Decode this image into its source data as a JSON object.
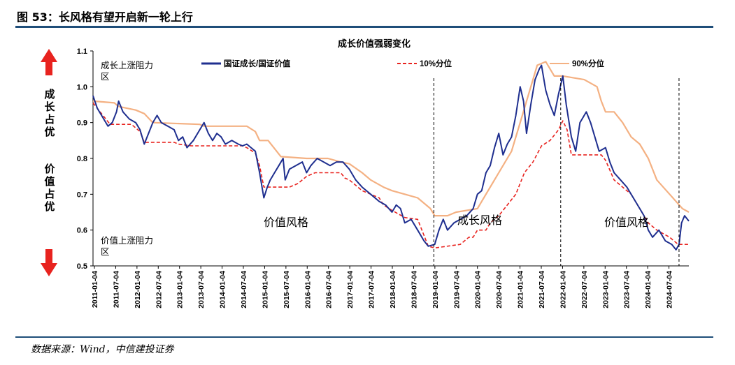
{
  "figure_title": "图 53：长风格有望开启新一轮上行",
  "source": "数据来源：Wind，中信建投证券",
  "chart_data": {
    "type": "line",
    "title": "成长价值强弱变化",
    "ylim": [
      0.5,
      1.1
    ],
    "yticks": [
      "0.5",
      "0.6",
      "0.7",
      "0.8",
      "0.9",
      "1.0",
      "1.1"
    ],
    "xticks": [
      "2011-01-04",
      "2011-07-04",
      "2012-01-04",
      "2012-07-04",
      "2013-01-04",
      "2013-07-04",
      "2014-01-04",
      "2014-07-04",
      "2015-01-04",
      "2015-07-04",
      "2016-01-04",
      "2016-07-04",
      "2017-01-04",
      "2017-07-04",
      "2018-01-04",
      "2018-07-04",
      "2019-01-04",
      "2019-07-04",
      "2020-01-04",
      "2020-07-04",
      "2021-01-04",
      "2021-07-04",
      "2022-01-04",
      "2022-07-04",
      "2023-01-04",
      "2023-07-04",
      "2024-01-04",
      "2024-07-04"
    ],
    "x_range": [
      2011.0,
      2024.95
    ],
    "series": [
      {
        "name": "国证成长/国证价值",
        "color": "#1f2f8f",
        "style": "solid",
        "points": [
          [
            2011.0,
            0.975
          ],
          [
            2011.1,
            0.94
          ],
          [
            2011.25,
            0.91
          ],
          [
            2011.35,
            0.89
          ],
          [
            2011.45,
            0.9
          ],
          [
            2011.55,
            0.93
          ],
          [
            2011.6,
            0.96
          ],
          [
            2011.7,
            0.93
          ],
          [
            2011.85,
            0.91
          ],
          [
            2012.0,
            0.9
          ],
          [
            2012.1,
            0.88
          ],
          [
            2012.2,
            0.84
          ],
          [
            2012.3,
            0.87
          ],
          [
            2012.4,
            0.9
          ],
          [
            2012.5,
            0.92
          ],
          [
            2012.6,
            0.9
          ],
          [
            2012.75,
            0.89
          ],
          [
            2012.9,
            0.88
          ],
          [
            2013.0,
            0.85
          ],
          [
            2013.1,
            0.86
          ],
          [
            2013.2,
            0.83
          ],
          [
            2013.35,
            0.85
          ],
          [
            2013.5,
            0.88
          ],
          [
            2013.6,
            0.9
          ],
          [
            2013.7,
            0.87
          ],
          [
            2013.8,
            0.85
          ],
          [
            2013.9,
            0.87
          ],
          [
            2014.0,
            0.86
          ],
          [
            2014.1,
            0.84
          ],
          [
            2014.25,
            0.85
          ],
          [
            2014.4,
            0.84
          ],
          [
            2014.5,
            0.835
          ],
          [
            2014.6,
            0.84
          ],
          [
            2014.7,
            0.83
          ],
          [
            2014.8,
            0.82
          ],
          [
            2014.9,
            0.76
          ],
          [
            2015.0,
            0.69
          ],
          [
            2015.08,
            0.72
          ],
          [
            2015.15,
            0.74
          ],
          [
            2015.25,
            0.76
          ],
          [
            2015.35,
            0.78
          ],
          [
            2015.45,
            0.8
          ],
          [
            2015.5,
            0.74
          ],
          [
            2015.6,
            0.77
          ],
          [
            2015.75,
            0.78
          ],
          [
            2015.9,
            0.79
          ],
          [
            2016.0,
            0.76
          ],
          [
            2016.1,
            0.78
          ],
          [
            2016.25,
            0.8
          ],
          [
            2016.4,
            0.79
          ],
          [
            2016.55,
            0.78
          ],
          [
            2016.7,
            0.79
          ],
          [
            2016.85,
            0.79
          ],
          [
            2017.0,
            0.77
          ],
          [
            2017.15,
            0.74
          ],
          [
            2017.3,
            0.72
          ],
          [
            2017.5,
            0.7
          ],
          [
            2017.7,
            0.68
          ],
          [
            2017.85,
            0.67
          ],
          [
            2018.0,
            0.65
          ],
          [
            2018.1,
            0.67
          ],
          [
            2018.2,
            0.66
          ],
          [
            2018.3,
            0.62
          ],
          [
            2018.45,
            0.63
          ],
          [
            2018.6,
            0.6
          ],
          [
            2018.75,
            0.57
          ],
          [
            2018.85,
            0.555
          ],
          [
            2019.0,
            0.56
          ],
          [
            2019.1,
            0.6
          ],
          [
            2019.2,
            0.63
          ],
          [
            2019.3,
            0.6
          ],
          [
            2019.45,
            0.62
          ],
          [
            2019.6,
            0.63
          ],
          [
            2019.75,
            0.64
          ],
          [
            2019.9,
            0.66
          ],
          [
            2020.0,
            0.7
          ],
          [
            2020.1,
            0.71
          ],
          [
            2020.2,
            0.76
          ],
          [
            2020.3,
            0.78
          ],
          [
            2020.4,
            0.83
          ],
          [
            2020.5,
            0.87
          ],
          [
            2020.6,
            0.81
          ],
          [
            2020.7,
            0.84
          ],
          [
            2020.8,
            0.86
          ],
          [
            2020.9,
            0.92
          ],
          [
            2021.0,
            1.0
          ],
          [
            2021.08,
            0.96
          ],
          [
            2021.15,
            0.87
          ],
          [
            2021.25,
            0.95
          ],
          [
            2021.35,
            1.02
          ],
          [
            2021.45,
            1.05
          ],
          [
            2021.5,
            1.06
          ],
          [
            2021.6,
            0.99
          ],
          [
            2021.7,
            0.95
          ],
          [
            2021.8,
            0.92
          ],
          [
            2021.9,
            0.98
          ],
          [
            2022.0,
            1.03
          ],
          [
            2022.08,
            0.95
          ],
          [
            2022.2,
            0.86
          ],
          [
            2022.3,
            0.82
          ],
          [
            2022.4,
            0.9
          ],
          [
            2022.55,
            0.93
          ],
          [
            2022.65,
            0.9
          ],
          [
            2022.75,
            0.86
          ],
          [
            2022.85,
            0.82
          ],
          [
            2023.0,
            0.83
          ],
          [
            2023.1,
            0.79
          ],
          [
            2023.2,
            0.76
          ],
          [
            2023.35,
            0.74
          ],
          [
            2023.5,
            0.72
          ],
          [
            2023.65,
            0.69
          ],
          [
            2023.8,
            0.66
          ],
          [
            2023.9,
            0.64
          ],
          [
            2024.0,
            0.6
          ],
          [
            2024.1,
            0.58
          ],
          [
            2024.25,
            0.6
          ],
          [
            2024.4,
            0.57
          ],
          [
            2024.55,
            0.56
          ],
          [
            2024.65,
            0.545
          ],
          [
            2024.72,
            0.56
          ],
          [
            2024.78,
            0.62
          ],
          [
            2024.85,
            0.64
          ],
          [
            2024.95,
            0.625
          ]
        ]
      },
      {
        "name": "10%分位",
        "color": "#e8231f",
        "style": "dashed",
        "points": [
          [
            2011.0,
            0.955
          ],
          [
            2011.3,
            0.91
          ],
          [
            2011.4,
            0.895
          ],
          [
            2011.9,
            0.895
          ],
          [
            2012.1,
            0.875
          ],
          [
            2012.2,
            0.845
          ],
          [
            2012.9,
            0.845
          ],
          [
            2013.0,
            0.84
          ],
          [
            2013.3,
            0.835
          ],
          [
            2014.3,
            0.835
          ],
          [
            2014.5,
            0.835
          ],
          [
            2014.6,
            0.83
          ],
          [
            2014.8,
            0.815
          ],
          [
            2014.9,
            0.78
          ],
          [
            2015.0,
            0.72
          ],
          [
            2015.6,
            0.72
          ],
          [
            2015.8,
            0.73
          ],
          [
            2016.0,
            0.75
          ],
          [
            2016.2,
            0.76
          ],
          [
            2016.8,
            0.76
          ],
          [
            2016.9,
            0.745
          ],
          [
            2017.0,
            0.74
          ],
          [
            2017.3,
            0.71
          ],
          [
            2017.5,
            0.7
          ],
          [
            2017.7,
            0.69
          ],
          [
            2017.8,
            0.67
          ],
          [
            2018.0,
            0.655
          ],
          [
            2018.3,
            0.635
          ],
          [
            2018.6,
            0.63
          ],
          [
            2018.7,
            0.6
          ],
          [
            2018.85,
            0.555
          ],
          [
            2019.0,
            0.55
          ],
          [
            2019.6,
            0.56
          ],
          [
            2019.8,
            0.58
          ],
          [
            2019.9,
            0.58
          ],
          [
            2020.0,
            0.6
          ],
          [
            2020.2,
            0.6
          ],
          [
            2020.3,
            0.62
          ],
          [
            2020.5,
            0.64
          ],
          [
            2020.7,
            0.67
          ],
          [
            2020.9,
            0.7
          ],
          [
            2021.1,
            0.76
          ],
          [
            2021.3,
            0.79
          ],
          [
            2021.5,
            0.835
          ],
          [
            2021.7,
            0.85
          ],
          [
            2021.9,
            0.88
          ],
          [
            2022.0,
            0.905
          ],
          [
            2022.1,
            0.88
          ],
          [
            2022.2,
            0.81
          ],
          [
            2022.9,
            0.81
          ],
          [
            2023.0,
            0.795
          ],
          [
            2023.2,
            0.74
          ],
          [
            2023.4,
            0.72
          ],
          [
            2023.6,
            0.7
          ],
          [
            2023.8,
            0.66
          ],
          [
            2024.0,
            0.62
          ],
          [
            2024.2,
            0.6
          ],
          [
            2024.5,
            0.58
          ],
          [
            2024.7,
            0.56
          ],
          [
            2024.95,
            0.56
          ]
        ]
      },
      {
        "name": "90%分位",
        "color": "#f4b183",
        "style": "solid",
        "points": [
          [
            2011.0,
            0.96
          ],
          [
            2011.5,
            0.955
          ],
          [
            2011.6,
            0.945
          ],
          [
            2012.0,
            0.935
          ],
          [
            2012.2,
            0.925
          ],
          [
            2012.4,
            0.9
          ],
          [
            2013.5,
            0.895
          ],
          [
            2013.6,
            0.89
          ],
          [
            2014.6,
            0.89
          ],
          [
            2014.8,
            0.875
          ],
          [
            2014.9,
            0.85
          ],
          [
            2015.1,
            0.85
          ],
          [
            2015.4,
            0.805
          ],
          [
            2016.0,
            0.8
          ],
          [
            2016.5,
            0.8
          ],
          [
            2016.8,
            0.79
          ],
          [
            2017.0,
            0.785
          ],
          [
            2017.3,
            0.76
          ],
          [
            2017.5,
            0.74
          ],
          [
            2017.8,
            0.72
          ],
          [
            2018.0,
            0.71
          ],
          [
            2018.3,
            0.7
          ],
          [
            2018.6,
            0.69
          ],
          [
            2018.9,
            0.66
          ],
          [
            2019.0,
            0.64
          ],
          [
            2019.3,
            0.64
          ],
          [
            2019.5,
            0.65
          ],
          [
            2020.0,
            0.66
          ],
          [
            2020.2,
            0.7
          ],
          [
            2020.5,
            0.76
          ],
          [
            2020.8,
            0.82
          ],
          [
            2021.0,
            0.9
          ],
          [
            2021.2,
            0.98
          ],
          [
            2021.4,
            1.06
          ],
          [
            2021.6,
            1.07
          ],
          [
            2021.8,
            1.03
          ],
          [
            2022.0,
            1.03
          ],
          [
            2022.5,
            1.02
          ],
          [
            2022.8,
            1.0
          ],
          [
            2022.9,
            0.96
          ],
          [
            2023.0,
            0.93
          ],
          [
            2023.2,
            0.93
          ],
          [
            2023.4,
            0.9
          ],
          [
            2023.6,
            0.86
          ],
          [
            2023.8,
            0.84
          ],
          [
            2024.0,
            0.8
          ],
          [
            2024.2,
            0.74
          ],
          [
            2024.5,
            0.7
          ],
          [
            2024.8,
            0.66
          ],
          [
            2024.95,
            0.65
          ]
        ]
      }
    ],
    "vlines": [
      2018.98,
      2021.95,
      2024.72
    ],
    "annotations": [
      "价值风格",
      "成长风格",
      "价值风格"
    ],
    "zone_labels": [
      "成长上涨阻力区",
      "价值上涨阻力区"
    ],
    "side_labels": [
      "成长占优",
      "价值占优"
    ],
    "colors": {
      "up_arrow": "#e8231f",
      "down_arrow": "#e8231f",
      "vline": "#000000"
    }
  }
}
